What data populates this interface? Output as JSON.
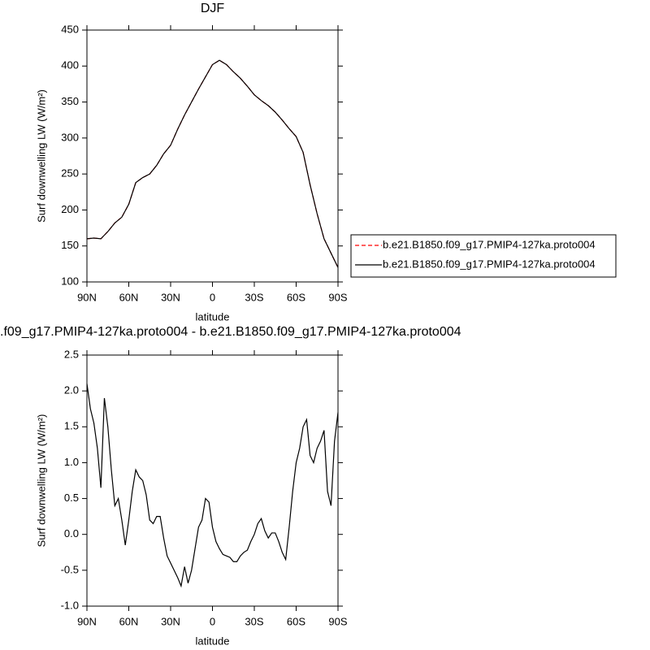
{
  "chart_data": [
    {
      "type": "line",
      "title": "DJF",
      "xlabel": "latitude",
      "ylabel": "Surf downwelling LW (W/m²)",
      "x": [
        90,
        85,
        80,
        75,
        70,
        65,
        60,
        55,
        50,
        45,
        40,
        35,
        30,
        25,
        20,
        15,
        10,
        5,
        0,
        -5,
        -10,
        -15,
        -20,
        -25,
        -30,
        -35,
        -40,
        -45,
        -50,
        -55,
        -60,
        -65,
        -70,
        -75,
        -80,
        -85,
        -90
      ],
      "series": [
        {
          "name": "b.e21.B1850.f09_g17.PMIP4-127ka.proto004",
          "color": "#ff0000",
          "line_style": "dashed",
          "values": [
            160,
            161,
            160,
            170,
            182,
            190,
            208,
            238,
            245,
            250,
            262,
            278,
            290,
            312,
            332,
            350,
            368,
            385,
            402,
            408,
            402,
            392,
            383,
            372,
            360,
            352,
            345,
            336,
            325,
            313,
            302,
            280,
            235,
            195,
            160,
            140,
            120
          ]
        },
        {
          "name": "b.e21.B1850.f09_g17.PMIP4-127ka.proto004",
          "color": "#000000",
          "line_style": "solid",
          "values": [
            160,
            161,
            160,
            170,
            182,
            190,
            208,
            238,
            245,
            250,
            262,
            278,
            290,
            312,
            332,
            350,
            368,
            385,
            402,
            408,
            402,
            392,
            383,
            372,
            360,
            352,
            345,
            336,
            325,
            313,
            302,
            280,
            235,
            195,
            160,
            140,
            120
          ]
        }
      ],
      "xlim": [
        90,
        -90
      ],
      "xticks": [
        {
          "value": 90,
          "label": "90N"
        },
        {
          "value": 60,
          "label": "60N"
        },
        {
          "value": 30,
          "label": "30N"
        },
        0,
        {
          "value": -30,
          "label": "30S"
        },
        {
          "value": -60,
          "label": "60S"
        },
        {
          "value": -90,
          "label": "90S"
        }
      ],
      "ylim": [
        100,
        450
      ],
      "yticks": [
        100,
        150,
        200,
        250,
        300,
        350,
        400,
        450
      ],
      "legend": "right"
    },
    {
      "type": "line",
      "title": ".f09_g17.PMIP4-127ka.proto004 - b.e21.B1850.f09_g17.PMIP4-127ka.proto004",
      "xlabel": "latitude",
      "ylabel": "Surf downwelling LW (W/m²)",
      "x": [
        90,
        87.5,
        85,
        82.5,
        80,
        77.5,
        75,
        72.5,
        70,
        67.5,
        65,
        62.5,
        60,
        57.5,
        55,
        52.5,
        50,
        47.5,
        45,
        42.5,
        40,
        37.5,
        35,
        32.5,
        30,
        27.5,
        25,
        22.5,
        20,
        17.5,
        15,
        12.5,
        10,
        7.5,
        5,
        2.5,
        0,
        -2.5,
        -5,
        -7.5,
        -10,
        -12.5,
        -15,
        -17.5,
        -20,
        -22.5,
        -25,
        -27.5,
        -30,
        -32.5,
        -35,
        -37.5,
        -40,
        -42.5,
        -45,
        -47.5,
        -50,
        -52.5,
        -55,
        -57.5,
        -60,
        -62.5,
        -65,
        -67.5,
        -70,
        -72.5,
        -75,
        -77.5,
        -80,
        -82.5,
        -85,
        -87.5,
        -90
      ],
      "series": [
        {
          "color": "#000000",
          "line_style": "solid",
          "values": [
            2.1,
            1.75,
            1.55,
            1.2,
            0.65,
            1.9,
            1.5,
            0.9,
            0.4,
            0.5,
            0.2,
            -0.15,
            0.2,
            0.6,
            0.9,
            0.8,
            0.75,
            0.55,
            0.2,
            0.15,
            0.25,
            0.25,
            -0.05,
            -0.3,
            -0.4,
            -0.5,
            -0.6,
            -0.72,
            -0.45,
            -0.68,
            -0.5,
            -0.2,
            0.1,
            0.2,
            0.5,
            0.45,
            0.1,
            -0.1,
            -0.2,
            -0.28,
            -0.3,
            -0.32,
            -0.38,
            -0.38,
            -0.3,
            -0.25,
            -0.22,
            -0.1,
            0.0,
            0.15,
            0.22,
            0.05,
            -0.05,
            0.02,
            0.02,
            -0.1,
            -0.25,
            -0.35,
            0.1,
            0.6,
            1.0,
            1.2,
            1.5,
            1.6,
            1.1,
            1.0,
            1.2,
            1.3,
            1.45,
            0.6,
            0.4,
            1.3,
            1.7
          ]
        }
      ],
      "xlim": [
        90,
        -90
      ],
      "xticks": [
        {
          "value": 90,
          "label": "90N"
        },
        {
          "value": 60,
          "label": "60N"
        },
        {
          "value": 30,
          "label": "30N"
        },
        0,
        {
          "value": -30,
          "label": "30S"
        },
        {
          "value": -60,
          "label": "60S"
        },
        {
          "value": -90,
          "label": "90S"
        }
      ],
      "ylim": [
        -1,
        2.5
      ],
      "yticks": [
        {
          "value": -1,
          "label": "-1.0"
        },
        -0.5,
        {
          "value": 0,
          "label": "0.0"
        },
        0.5,
        {
          "value": 1,
          "label": "1.0"
        },
        1.5,
        {
          "value": 2,
          "label": "2.0"
        },
        2.5
      ]
    }
  ]
}
